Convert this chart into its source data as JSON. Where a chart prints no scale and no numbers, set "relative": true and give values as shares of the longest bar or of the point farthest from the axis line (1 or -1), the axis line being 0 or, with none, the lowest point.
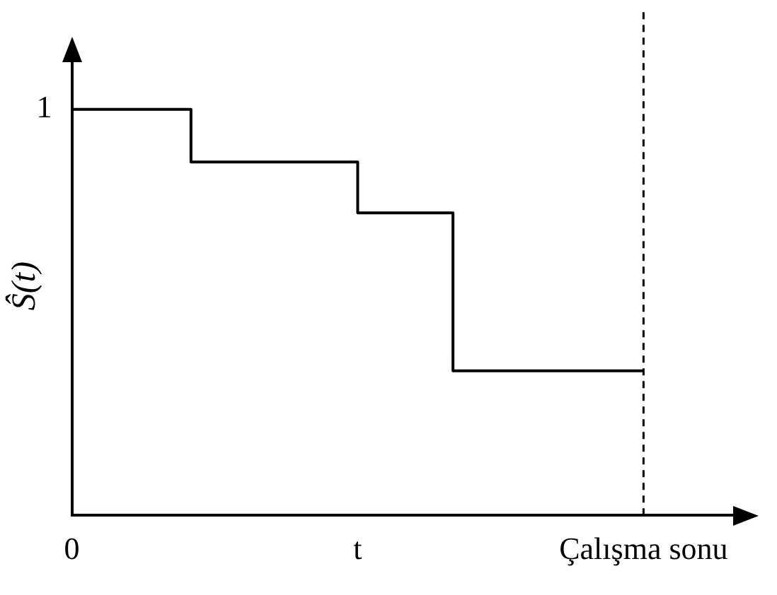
{
  "chart_data": {
    "type": "step",
    "relative": true,
    "ylabel": "Ŝ(t)",
    "categories": [
      "0",
      null,
      null,
      null,
      null,
      null,
      null,
      null,
      null,
      null,
      null,
      null,
      "t",
      null,
      null,
      null,
      null,
      null,
      null,
      null,
      null,
      null,
      null,
      null,
      "Çalışma sonu",
      null,
      null,
      null,
      null
    ],
    "series": [
      {
        "color": "#000000",
        "values": [
          1,
          1,
          1,
          1,
          1,
          0.87,
          0.87,
          0.87,
          0.87,
          0.87,
          0.87,
          0.87,
          0.745,
          0.745,
          0.745,
          0.745,
          0.356,
          0.356,
          0.356,
          0.356,
          0.356,
          0.356,
          0.356,
          0.356,
          0.356,
          null,
          null,
          null,
          null
        ]
      }
    ],
    "annotations": [
      "1"
    ],
    "ref_lines": [
      {
        "axis": "x",
        "value": "Çalışma sonu",
        "line_style": "dashed",
        "color": "#000000"
      }
    ],
    "grid": false,
    "legend": false,
    "line_style": "solid",
    "marker": "none"
  }
}
